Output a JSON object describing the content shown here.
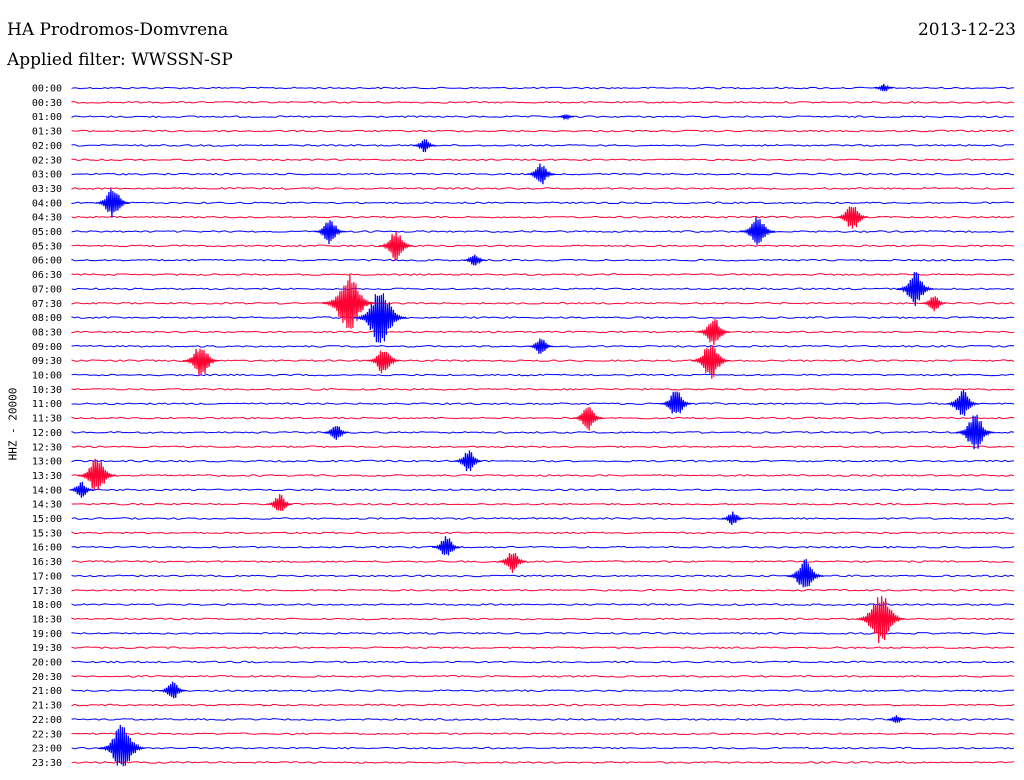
{
  "header": {
    "station": "HA Prodromos-Domvrena",
    "date": "2013-12-23",
    "filter": "Applied filter: WWSSN-SP"
  },
  "channel": "HHZ - 20000",
  "colors": {
    "even_row": "#0000ff",
    "odd_row": "#ff0033"
  },
  "chart_data": {
    "type": "line",
    "title": "HA Prodromos-Domvrena",
    "ylabel": "HHZ - 20000",
    "row_labels": [
      "00:00",
      "00:30",
      "01:00",
      "01:30",
      "02:00",
      "02:30",
      "03:00",
      "03:30",
      "04:00",
      "04:30",
      "05:00",
      "05:30",
      "06:00",
      "06:30",
      "07:00",
      "07:30",
      "08:00",
      "08:30",
      "09:00",
      "09:30",
      "10:00",
      "10:30",
      "11:00",
      "11:30",
      "12:00",
      "12:30",
      "13:00",
      "13:30",
      "14:00",
      "14:30",
      "15:00",
      "15:30",
      "16:00",
      "16:30",
      "17:00",
      "17:30",
      "18:00",
      "18:30",
      "19:00",
      "19:30",
      "20:00",
      "20:30",
      "21:00",
      "21:30",
      "22:00",
      "22:30",
      "23:00",
      "23:30"
    ],
    "x_range_minutes": [
      0,
      30
    ],
    "events": [
      {
        "row": "00:00",
        "minute": 25.8,
        "amplitude": 0.3
      },
      {
        "row": "01:00",
        "minute": 15.7,
        "amplitude": 0.2
      },
      {
        "row": "02:00",
        "minute": 11.2,
        "amplitude": 0.5
      },
      {
        "row": "03:00",
        "minute": 14.9,
        "amplitude": 0.8
      },
      {
        "row": "04:00",
        "minute": 1.3,
        "amplitude": 1.1
      },
      {
        "row": "04:30",
        "minute": 24.8,
        "amplitude": 1.0
      },
      {
        "row": "05:00",
        "minute": 8.2,
        "amplitude": 0.9
      },
      {
        "row": "05:00",
        "minute": 21.8,
        "amplitude": 1.1
      },
      {
        "row": "05:30",
        "minute": 10.3,
        "amplitude": 1.1
      },
      {
        "row": "06:00",
        "minute": 12.8,
        "amplitude": 0.5
      },
      {
        "row": "07:00",
        "minute": 26.8,
        "amplitude": 1.2
      },
      {
        "row": "07:30",
        "minute": 8.8,
        "amplitude": 2.0
      },
      {
        "row": "07:30",
        "minute": 27.4,
        "amplitude": 0.6
      },
      {
        "row": "08:00",
        "minute": 9.8,
        "amplitude": 2.0
      },
      {
        "row": "08:30",
        "minute": 20.4,
        "amplitude": 1.0
      },
      {
        "row": "09:00",
        "minute": 14.9,
        "amplitude": 0.6
      },
      {
        "row": "09:30",
        "minute": 4.1,
        "amplitude": 1.2
      },
      {
        "row": "09:30",
        "minute": 9.9,
        "amplitude": 1.0
      },
      {
        "row": "09:30",
        "minute": 20.3,
        "amplitude": 1.3
      },
      {
        "row": "11:00",
        "minute": 19.2,
        "amplitude": 1.0
      },
      {
        "row": "11:00",
        "minute": 28.3,
        "amplitude": 1.0
      },
      {
        "row": "11:30",
        "minute": 16.4,
        "amplitude": 0.9
      },
      {
        "row": "12:00",
        "minute": 8.4,
        "amplitude": 0.6
      },
      {
        "row": "12:00",
        "minute": 28.7,
        "amplitude": 1.3
      },
      {
        "row": "13:00",
        "minute": 12.6,
        "amplitude": 0.8
      },
      {
        "row": "13:30",
        "minute": 0.8,
        "amplitude": 1.3
      },
      {
        "row": "14:00",
        "minute": 0.3,
        "amplitude": 0.6
      },
      {
        "row": "14:30",
        "minute": 6.6,
        "amplitude": 0.7
      },
      {
        "row": "15:00",
        "minute": 21.0,
        "amplitude": 0.5
      },
      {
        "row": "16:00",
        "minute": 11.9,
        "amplitude": 0.8
      },
      {
        "row": "16:30",
        "minute": 14.0,
        "amplitude": 0.8
      },
      {
        "row": "17:00",
        "minute": 23.3,
        "amplitude": 1.2
      },
      {
        "row": "18:30",
        "minute": 25.7,
        "amplitude": 1.8
      },
      {
        "row": "21:00",
        "minute": 3.2,
        "amplitude": 0.7
      },
      {
        "row": "22:00",
        "minute": 26.2,
        "amplitude": 0.3
      },
      {
        "row": "23:00",
        "minute": 1.6,
        "amplitude": 1.7
      }
    ]
  }
}
